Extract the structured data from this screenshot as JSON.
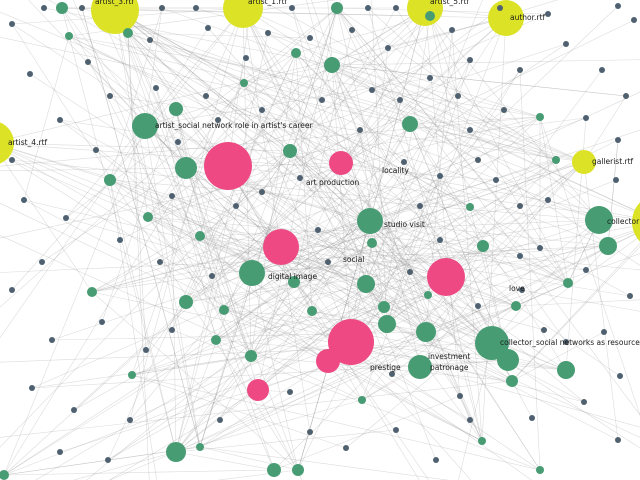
{
  "colors": {
    "document": "#dce327",
    "theme": "#ee4983",
    "concept": "#479c74",
    "term": "#4f6170",
    "edge": "#9a9a9a",
    "background": "#ffffff"
  },
  "node_types": [
    "document",
    "theme",
    "concept",
    "term"
  ],
  "labels": {
    "artist_3": "artist_3.rtf",
    "artist_1": "artist_1.rtf",
    "artist_5": "artist_5.rtf",
    "author": "author.rtf",
    "artist_4": "artist_4.rtf",
    "gallerist": "gallerist.rtf",
    "collector_rtf": "collector",
    "artist_social_network": "artist_social network role in artist's career",
    "art_production": "art production",
    "locality": "locality",
    "studio_visit": "studio visit",
    "digital_image": "digital image",
    "social": "social",
    "love": "love",
    "collector_social": "collector_social networks as resources",
    "investment": "investment",
    "prestige": "prestige",
    "patronage": "patronage"
  }
}
